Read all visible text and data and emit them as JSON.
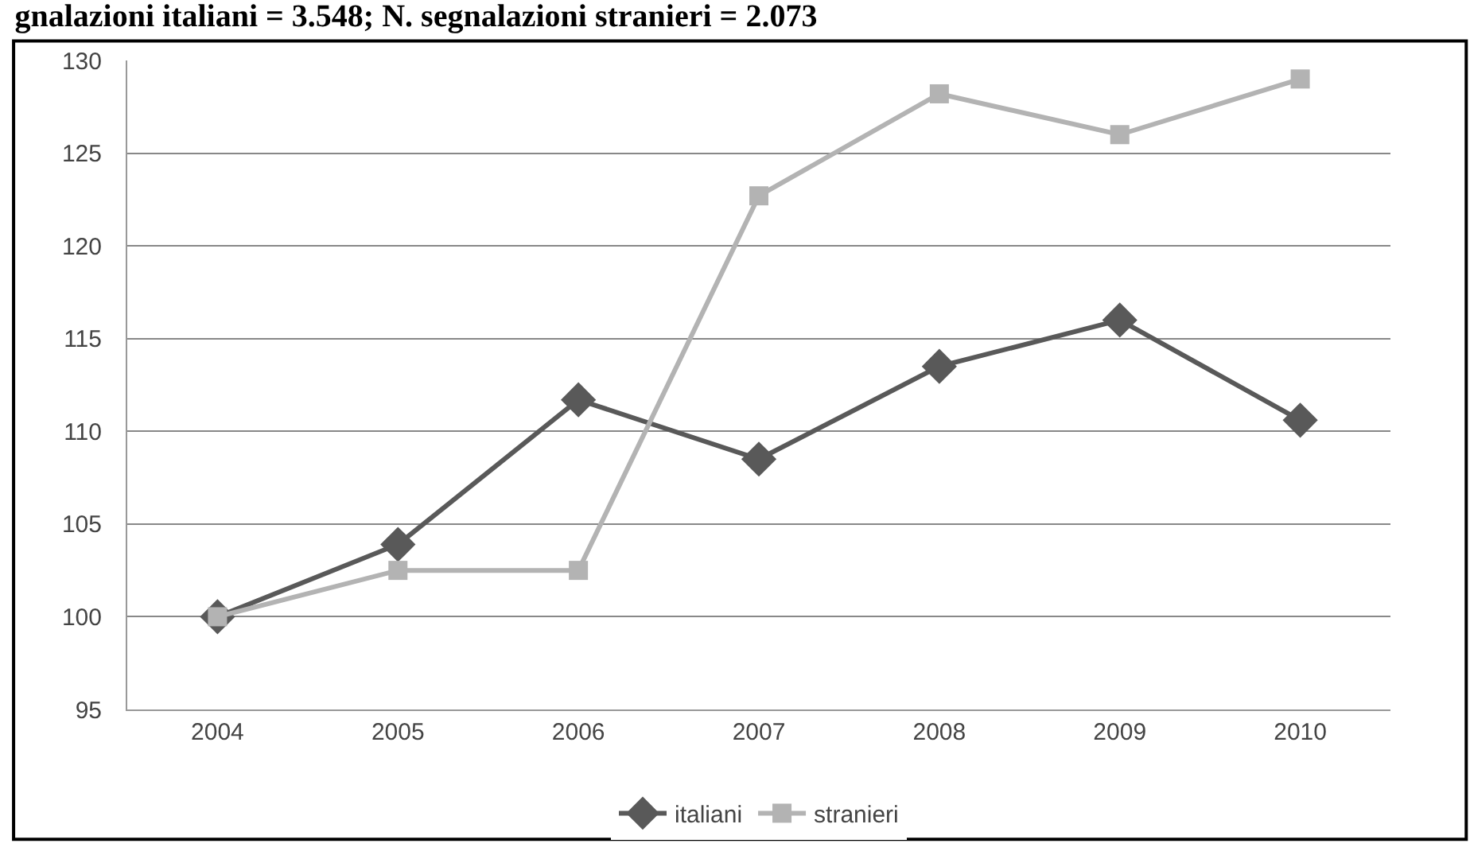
{
  "chart_data": {
    "type": "line",
    "title": "gnalazioni italiani = 3.548; N. segnalazioni stranieri = 2.073",
    "categories": [
      "2004",
      "2005",
      "2006",
      "2007",
      "2008",
      "2009",
      "2010"
    ],
    "series": [
      {
        "name": "italiani",
        "color": "#595959",
        "marker": "diamond",
        "values": [
          100,
          103.9,
          111.7,
          108.5,
          113.5,
          116,
          110.6
        ]
      },
      {
        "name": "stranieri",
        "color": "#b3b3b3",
        "marker": "square",
        "values": [
          100,
          102.5,
          102.5,
          122.7,
          128.2,
          126,
          129
        ]
      }
    ],
    "ylim": [
      95,
      130
    ],
    "yticks": [
      95,
      100,
      105,
      110,
      115,
      120,
      125,
      130
    ],
    "grid": "y",
    "legend": "bottom"
  }
}
